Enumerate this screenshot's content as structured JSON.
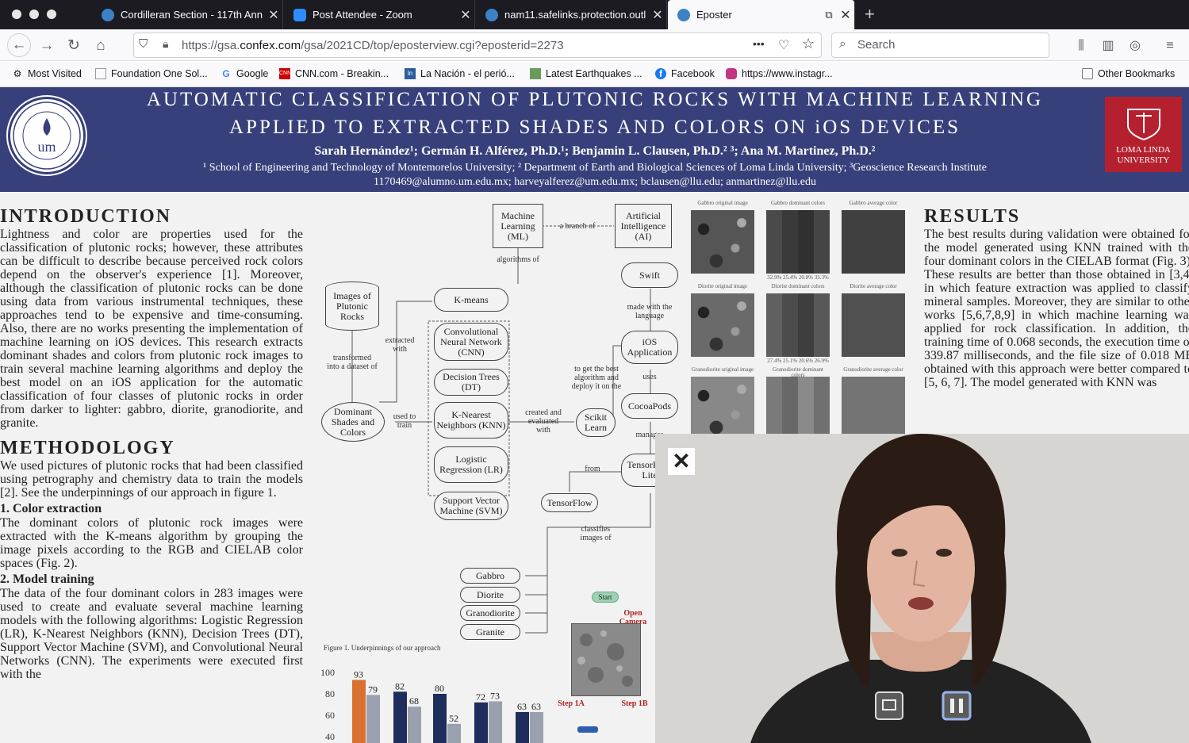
{
  "tabs": [
    {
      "title": "Cordilleran Section - 117th Ann",
      "icon": "globe-icon"
    },
    {
      "title": "Post Attendee - Zoom",
      "icon": "zoom-icon"
    },
    {
      "title": "nam11.safelinks.protection.outl",
      "icon": "globe-icon"
    },
    {
      "title": "Eposter",
      "icon": "globe-icon",
      "active": true
    }
  ],
  "navbar": {
    "url_prefix": "https://gsa.",
    "url_domain": "confex.com",
    "url_suffix": "/gsa/2021CD/top/eposterview.cgi?eposterid=2273",
    "page_actions": "•••",
    "search_placeholder": "Search"
  },
  "bookmarks": [
    {
      "label": "Most Visited",
      "icon": "gear-icon"
    },
    {
      "label": "Foundation One Sol...",
      "icon": "page-icon"
    },
    {
      "label": "Google",
      "icon": "google-icon"
    },
    {
      "label": "CNN.com - Breakin...",
      "icon": "cnn-icon"
    },
    {
      "label": "La Nación - el perió...",
      "icon": "ln-icon"
    },
    {
      "label": "Latest Earthquakes ...",
      "icon": "map-icon"
    },
    {
      "label": "Facebook",
      "icon": "facebook-icon"
    },
    {
      "label": "https://www.instagr...",
      "icon": "instagram-icon"
    }
  ],
  "other_bookmarks": "Other Bookmarks",
  "poster": {
    "title_line1": "AUTOMATIC CLASSIFICATION OF PLUTONIC ROCKS WITH MACHINE LEARNING",
    "title_line2": "APPLIED TO EXTRACTED SHADES AND COLORS ON iOS DEVICES",
    "authors": "Sarah Hernández¹;  Germán H. Alférez, Ph.D.¹;  Benjamin L. Clausen, Ph.D.² ³;  Ana M. Martinez, Ph.D.²",
    "affiliations": "¹ School of Engineering and Technology of Montemorelos University;  ² Department of Earth and Biological Sciences of Loma Linda University;  ³Geoscience Research Institute",
    "emails": "1170469@alumno.um.edu.mx;  harveyalferez@um.edu.mx;  bclausen@llu.edu;  anmartinez@llu.edu",
    "right_logo": "LOMA LINDA UNIVERSITY",
    "intro_heading": "INTRODUCTION",
    "intro_text": "Lightness and color are properties used for the classification of plutonic rocks; however, these attributes can be difficult to describe because perceived rock colors depend on the observer's experience [1]. Moreover, although the classification of plutonic rocks can be done using data from various instrumental techniques, these approaches tend to be expensive and time-consuming. Also, there are no works presenting the implementation of machine learning on iOS devices. This research extracts dominant shades and colors from plutonic rock images to train several machine learning algorithms and deploy the best model on an iOS application for the automatic classification of four classes of plutonic rocks in order from darker to lighter: gabbro, diorite, granodiorite, and granite.",
    "method_heading": "METHODOLOGY",
    "method_text": "We used pictures of plutonic rocks that had been classified using petrography and chemistry data to train the models [2]. See the underpinnings of our approach in figure 1.",
    "sub1": "1. Color extraction",
    "sub1_text": "The dominant colors of plutonic rock images were extracted with the K-means algorithm by grouping the image pixels according to the RGB and CIELAB color spaces (Fig. 2).",
    "sub2": "2.  Model training",
    "sub2_text": "The data of the four dominant colors in 283 images were used to create and evaluate several machine learning models with the following algorithms: Logistic Regression (LR), K-Nearest Neighbors (KNN), Decision Trees (DT), Support Vector Machine (SVM), and Convolutional Neural Networks (CNN). The experiments were executed first with the",
    "results_heading": "RESULTS",
    "results_text": "The best results during validation were obtained for the model generated using KNN trained with the four dominant colors in the CIELAB format (Fig. 3). These results are better than those obtained in [3,4] in which feature extraction was applied to classify mineral samples. Moreover, they are similar to other works [5,6,7,8,9] in which machine learning was applied for rock classification. In addition, the training time of 0.068 seconds, the execution time of 339.87 milliseconds, and the file size of 0.018 MB obtained with this approach were better compared to [5, 6, 7]. The model generated with KNN was"
  },
  "diagram": {
    "ml": "Machine Learning (ML)",
    "branch": "a branch of",
    "ai": "Artificial Intelligence (AI)",
    "algorithms_of": "algorithms of",
    "images": "Images of Plutonic Rocks",
    "kmeans": "K-means",
    "extracted_with": "extracted with",
    "transformed": "transformed into a dataset of",
    "cnn": "Convolutional Neural Network (CNN)",
    "dt": "Decision Trees (DT)",
    "knn": "K-Nearest Neighbors (KNN)",
    "lr": "Logistic Regression (LR)",
    "svm": "Support Vector Machine (SVM)",
    "dominant": "Dominant Shades and Colors",
    "used_to_train": "used to train",
    "created": "created and evaluated with",
    "sklearn": "Scikit Learn",
    "get_best": "to get the best algorithm and deploy it on the",
    "swift": "Swift",
    "made_with": "made with the language",
    "ios": "iOS Application",
    "uses": "uses",
    "cocoapods": "CocoaPods",
    "manages": "manages",
    "tflite": "TensorFlow Lite",
    "from": "from",
    "tensorflow": "TensorFlow",
    "classifies": "classifies images of",
    "gabbro": "Gabbro",
    "diorite": "Diorite",
    "granodiorite": "Granodiorite",
    "granite": "Granite",
    "fig1": "Figure 1. Underpinnings of our approach",
    "start": "Start",
    "open_camera": "Open Camera",
    "step1a": "Step 1A",
    "step1b": "Step 1B"
  },
  "swatches": [
    {
      "orig": "Gabbro original image",
      "dom": "Gabbro dominant colors",
      "avg": "Gabbro average color",
      "pct": "32.9%   25.4%   20.8%   33.3%",
      "c1": "#4a4a4a",
      "c2": "#3a3a3a",
      "c3": "#303030",
      "c4": "#454545",
      "avg_color": "#404040",
      "tex": "#555"
    },
    {
      "orig": "Diorite original image",
      "dom": "Diorite dominant colors",
      "avg": "Diorite average color",
      "pct": "27.4%   25.1%   20.6%   26.9%",
      "c1": "#606060",
      "c2": "#4c4c4c",
      "c3": "#3e3e3e",
      "c4": "#585858",
      "avg_color": "#505050",
      "tex": "#6a6a6a"
    },
    {
      "orig": "Granodiorite original image",
      "dom": "Granodiorite dominant colors",
      "avg": "Granodiorite average color",
      "pct": "",
      "c1": "#7a7a7a",
      "c2": "#686868",
      "c3": "#8a8a8a",
      "c4": "#707070",
      "avg_color": "#747474",
      "tex": "#888"
    }
  ],
  "chart_data": {
    "type": "bar",
    "y_ticks": [
      "100",
      "80",
      "60",
      "40"
    ],
    "ylim": [
      40,
      100
    ],
    "groups": [
      {
        "values": [
          93,
          79
        ],
        "labels": [
          "93",
          "79"
        ],
        "colors": [
          "#d9722e",
          "#9aa0ad"
        ]
      },
      {
        "values": [
          82,
          68
        ],
        "labels": [
          "82",
          "68"
        ],
        "colors": [
          "#1f2d5c",
          "#9aa0ad"
        ]
      },
      {
        "values": [
          80,
          52
        ],
        "labels": [
          "80",
          "52"
        ],
        "colors": [
          "#1f2d5c",
          "#9aa0ad"
        ]
      },
      {
        "values": [
          72,
          73
        ],
        "labels": [
          "72",
          "73"
        ],
        "colors": [
          "#1f2d5c",
          "#9aa0ad"
        ]
      },
      {
        "values": [
          63,
          63
        ],
        "labels": [
          "63",
          "63"
        ],
        "colors": [
          "#1f2d5c",
          "#9aa0ad"
        ]
      }
    ]
  }
}
